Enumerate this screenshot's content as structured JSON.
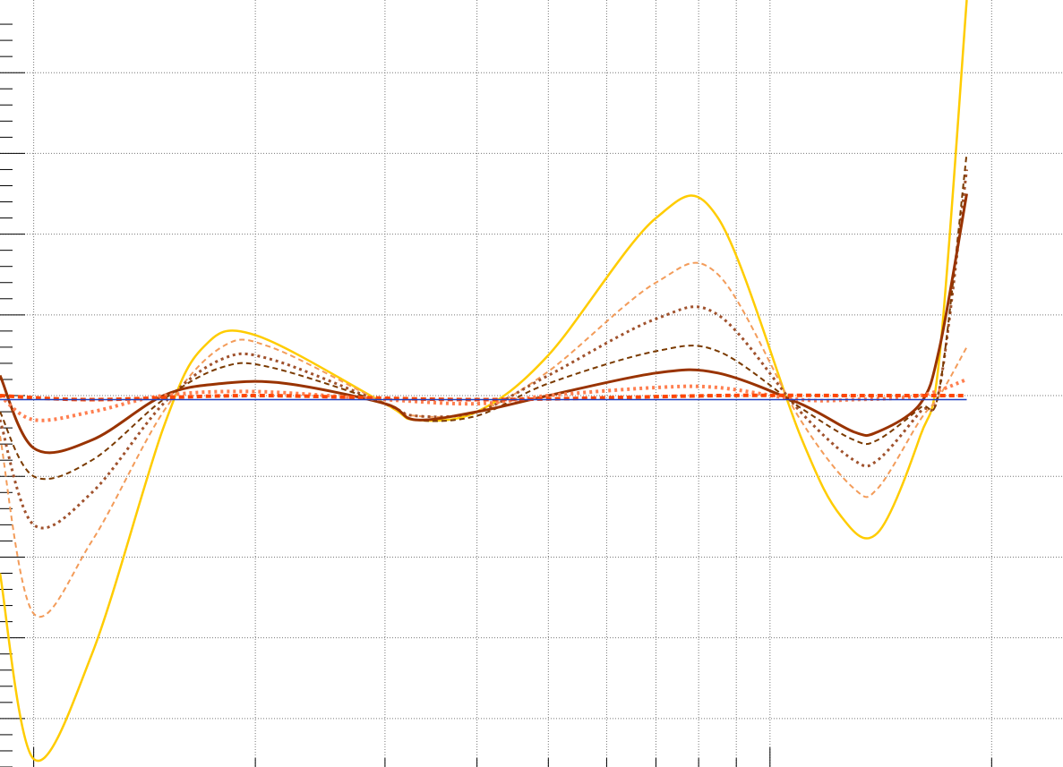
{
  "chart_data": {
    "type": "line",
    "title": "",
    "xlabel": "",
    "ylabel": "",
    "x_scale": "log",
    "xlim": [
      0.9,
      25
    ],
    "ylim": [
      -4.6,
      4.9
    ],
    "grid": true,
    "grid_style": "dotted",
    "legend": "none",
    "tick_labels_visible": false,
    "series": [
      {
        "color": "#ffcc00",
        "style": "solid",
        "width": 2.5,
        "points": [
          [
            0.9,
            -2.2
          ],
          [
            1.0,
            -4.5
          ],
          [
            1.2,
            -3.2
          ],
          [
            1.5,
            -0.4
          ],
          [
            1.7,
            0.6
          ],
          [
            2.0,
            0.75
          ],
          [
            3.0,
            -0.1
          ],
          [
            3.3,
            -0.3
          ],
          [
            4.0,
            -0.2
          ],
          [
            5.0,
            0.5
          ],
          [
            7.0,
            2.2
          ],
          [
            8.5,
            2.2
          ],
          [
            11.0,
            -0.5
          ],
          [
            12.5,
            -1.5
          ],
          [
            14.0,
            -1.7
          ],
          [
            16.0,
            -0.5
          ],
          [
            17.0,
            0.5
          ],
          [
            18.5,
            4.9
          ]
        ]
      },
      {
        "color": "#f39c5a",
        "style": "dashed",
        "width": 2,
        "points": [
          [
            0.9,
            -0.5
          ],
          [
            1.0,
            -2.7
          ],
          [
            1.2,
            -1.8
          ],
          [
            1.5,
            -0.2
          ],
          [
            1.8,
            0.6
          ],
          [
            2.1,
            0.6
          ],
          [
            3.0,
            -0.1
          ],
          [
            3.3,
            -0.25
          ],
          [
            4.0,
            -0.2
          ],
          [
            5.0,
            0.3
          ],
          [
            7.0,
            1.4
          ],
          [
            8.5,
            1.5
          ],
          [
            11.0,
            -0.3
          ],
          [
            13.0,
            -1.15
          ],
          [
            14.0,
            -1.15
          ],
          [
            16.0,
            -0.3
          ],
          [
            17.0,
            0.0
          ],
          [
            18.5,
            0.6
          ]
        ]
      },
      {
        "color": "#a0522d",
        "style": "dotted",
        "width": 3,
        "points": [
          [
            0.9,
            -0.3
          ],
          [
            1.0,
            -1.6
          ],
          [
            1.2,
            -1.2
          ],
          [
            1.5,
            -0.1
          ],
          [
            1.8,
            0.45
          ],
          [
            2.1,
            0.45
          ],
          [
            3.0,
            -0.1
          ],
          [
            3.3,
            -0.25
          ],
          [
            4.0,
            -0.2
          ],
          [
            5.0,
            0.25
          ],
          [
            7.0,
            0.95
          ],
          [
            8.5,
            1.0
          ],
          [
            11.0,
            -0.2
          ],
          [
            13.0,
            -0.8
          ],
          [
            14.0,
            -0.8
          ],
          [
            16.0,
            -0.2
          ],
          [
            17.0,
            0.1
          ],
          [
            18.5,
            2.8
          ]
        ]
      },
      {
        "color": "#7a3a00",
        "style": "dashed",
        "width": 2,
        "points": [
          [
            0.9,
            -0.2
          ],
          [
            1.0,
            -1.0
          ],
          [
            1.2,
            -0.8
          ],
          [
            1.5,
            -0.05
          ],
          [
            1.8,
            0.35
          ],
          [
            2.1,
            0.35
          ],
          [
            3.0,
            -0.1
          ],
          [
            3.3,
            -0.3
          ],
          [
            4.0,
            -0.25
          ],
          [
            5.0,
            0.15
          ],
          [
            7.0,
            0.55
          ],
          [
            8.5,
            0.55
          ],
          [
            11.0,
            -0.15
          ],
          [
            13.0,
            -0.55
          ],
          [
            14.0,
            -0.55
          ],
          [
            16.0,
            -0.15
          ],
          [
            17.0,
            0.1
          ],
          [
            18.5,
            3.0
          ]
        ]
      },
      {
        "color": "#993300",
        "style": "solid",
        "width": 3,
        "points": [
          [
            0.9,
            0.25
          ],
          [
            1.0,
            -0.65
          ],
          [
            1.2,
            -0.55
          ],
          [
            1.5,
            0.0
          ],
          [
            1.8,
            0.15
          ],
          [
            2.2,
            0.15
          ],
          [
            3.0,
            -0.1
          ],
          [
            3.3,
            -0.3
          ],
          [
            4.0,
            -0.2
          ],
          [
            5.0,
            0.0
          ],
          [
            7.0,
            0.28
          ],
          [
            8.5,
            0.28
          ],
          [
            11.0,
            -0.1
          ],
          [
            13.0,
            -0.45
          ],
          [
            14.0,
            -0.45
          ],
          [
            16.0,
            -0.1
          ],
          [
            17.0,
            0.6
          ],
          [
            18.5,
            2.5
          ]
        ]
      },
      {
        "color": "#ff7f50",
        "style": "dotted",
        "width": 4,
        "points": [
          [
            0.9,
            0.0
          ],
          [
            1.0,
            -0.3
          ],
          [
            1.2,
            -0.2
          ],
          [
            1.5,
            0.0
          ],
          [
            2.0,
            0.05
          ],
          [
            3.0,
            -0.05
          ],
          [
            4.0,
            -0.1
          ],
          [
            5.0,
            0.0
          ],
          [
            7.0,
            0.1
          ],
          [
            8.5,
            0.1
          ],
          [
            11.0,
            -0.05
          ],
          [
            13.0,
            -0.05
          ],
          [
            16.0,
            0.0
          ],
          [
            18.5,
            0.2
          ]
        ]
      },
      {
        "color": "#ff4500",
        "style": "dashed",
        "width": 4,
        "points": [
          [
            0.9,
            0.0
          ],
          [
            1.2,
            -0.05
          ],
          [
            2.0,
            0.0
          ],
          [
            4.0,
            -0.05
          ],
          [
            8.5,
            0.0
          ],
          [
            13.0,
            0.0
          ],
          [
            16.0,
            0.0
          ],
          [
            18.5,
            0.0
          ]
        ]
      },
      {
        "color": "#1f3fbf",
        "style": "solid",
        "width": 1.5,
        "points": [
          [
            0.9,
            -0.05
          ],
          [
            18.5,
            -0.05
          ]
        ]
      }
    ]
  }
}
